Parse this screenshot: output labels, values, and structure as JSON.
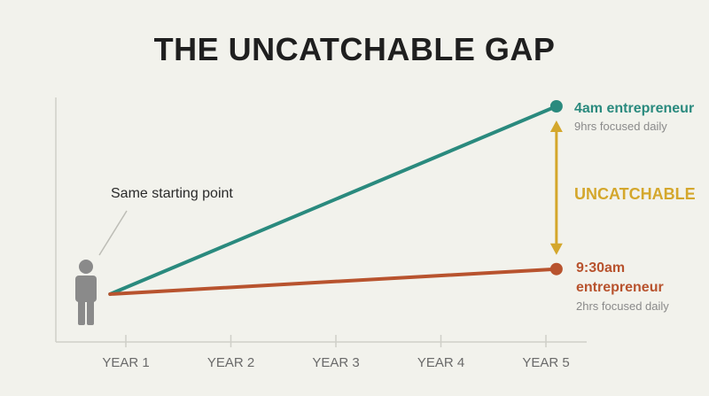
{
  "chart_data": {
    "type": "line",
    "title": "THE UNCATCHABLE GAP",
    "categories": [
      "YEAR 1",
      "YEAR 2",
      "YEAR 3",
      "YEAR 4",
      "YEAR 5"
    ],
    "ylim": [
      0,
      10
    ],
    "start": {
      "x": 0.85,
      "y": 0
    },
    "series": [
      {
        "name": "4am entrepreneur",
        "subtitle": "9hrs focused daily",
        "color": "#2a8a7e",
        "end": {
          "x": 5.1,
          "y": 9
        }
      },
      {
        "name": "9:30am entrepreneur",
        "name_line1": "9:30am",
        "name_line2": "entrepreneur",
        "subtitle": "2hrs focused daily",
        "color": "#b8532e",
        "end": {
          "x": 5.1,
          "y": 1.2
        }
      }
    ],
    "annotations": {
      "start_label": "Same starting point",
      "gap_label": "UNCATCHABLE",
      "gap_color": "#d4a72c"
    },
    "grid": false,
    "person_icon": "person-icon"
  }
}
